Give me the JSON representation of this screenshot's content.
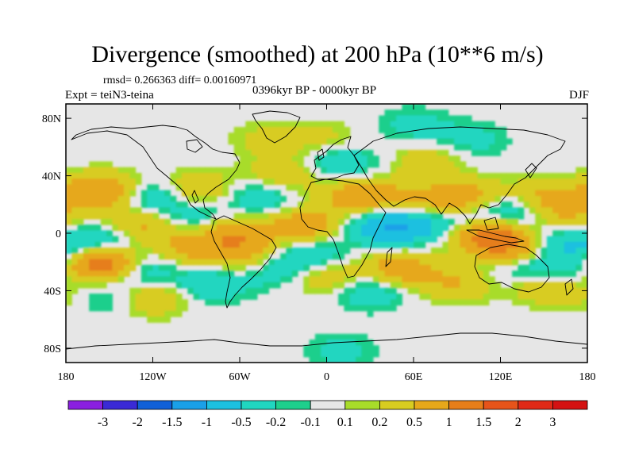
{
  "chart_data": {
    "type": "heatmap",
    "title": "Divergence (smoothed) at 200 hPa (10**6 m/s)",
    "stats_text": "rmsd= 0.266363  diff= 0.00160971",
    "period": "0396kyr BP - 0000kyr BP",
    "experiment": "Expt = teiN3-teina",
    "season": "DJF",
    "xlim": [
      -180,
      180
    ],
    "ylim": [
      -90,
      90
    ],
    "x_ticks": [
      {
        "value": -180,
        "label": "180"
      },
      {
        "value": -120,
        "label": "120W"
      },
      {
        "value": -60,
        "label": "60W"
      },
      {
        "value": 0,
        "label": "0"
      },
      {
        "value": 60,
        "label": "60E"
      },
      {
        "value": 120,
        "label": "120E"
      },
      {
        "value": 180,
        "label": "180"
      }
    ],
    "y_ticks": [
      {
        "value": 80,
        "label": "80N"
      },
      {
        "value": 40,
        "label": "40N"
      },
      {
        "value": 0,
        "label": "0"
      },
      {
        "value": -40,
        "label": "40S"
      },
      {
        "value": -80,
        "label": "80S"
      }
    ],
    "colorbar": {
      "labels": [
        "-3",
        "-2",
        "-1.5",
        "-1",
        "-0.5",
        "-0.2",
        "-0.1",
        "0.1",
        "0.2",
        "0.5",
        "1",
        "1.5",
        "2",
        "3"
      ],
      "colors": [
        "#8a1fe0",
        "#3a2ad6",
        "#1060d8",
        "#1aa0e8",
        "#1cc0e0",
        "#20d6c0",
        "#1ecf8c",
        "#e6e6e6",
        "#a8dc2a",
        "#d8cc20",
        "#e6a81a",
        "#e67e1a",
        "#e6541a",
        "#e02a16",
        "#d41212"
      ]
    },
    "field_anomalies": [
      {
        "lon": -155,
        "lat": -20,
        "value": 1.8
      },
      {
        "lon": -150,
        "lat": 30,
        "value": 0.6
      },
      {
        "lon": -165,
        "lat": 28,
        "value": 0.5
      },
      {
        "lon": -120,
        "lat": 25,
        "value": -0.6
      },
      {
        "lon": -130,
        "lat": 5,
        "value": 0.7
      },
      {
        "lon": -150,
        "lat": -5,
        "value": -0.6
      },
      {
        "lon": -170,
        "lat": -10,
        "value": -0.5
      },
      {
        "lon": -130,
        "lat": -25,
        "value": -0.6
      },
      {
        "lon": -120,
        "lat": -45,
        "value": 0.5
      },
      {
        "lon": -160,
        "lat": -45,
        "value": -0.5
      },
      {
        "lon": -90,
        "lat": 30,
        "value": 0.6
      },
      {
        "lon": -85,
        "lat": 10,
        "value": -0.6
      },
      {
        "lon": -95,
        "lat": -10,
        "value": 0.6
      },
      {
        "lon": -70,
        "lat": 5,
        "value": 0.5
      },
      {
        "lon": -60,
        "lat": -5,
        "value": 0.7
      },
      {
        "lon": -55,
        "lat": -20,
        "value": 0.5
      },
      {
        "lon": -80,
        "lat": -35,
        "value": -0.5
      },
      {
        "lon": -40,
        "lat": -25,
        "value": -0.5
      },
      {
        "lon": -30,
        "lat": 40,
        "value": 0.5
      },
      {
        "lon": -45,
        "lat": 25,
        "value": -0.5
      },
      {
        "lon": -40,
        "lat": 65,
        "value": 0.3
      },
      {
        "lon": -15,
        "lat": 5,
        "value": 0.8
      },
      {
        "lon": -10,
        "lat": -15,
        "value": -0.5
      },
      {
        "lon": 0,
        "lat": -30,
        "value": 0.5
      },
      {
        "lon": 20,
        "lat": 25,
        "value": 0.7
      },
      {
        "lon": 10,
        "lat": 50,
        "value": -0.5
      },
      {
        "lon": 35,
        "lat": 5,
        "value": -0.6
      },
      {
        "lon": 55,
        "lat": 5,
        "value": -0.7
      },
      {
        "lon": 45,
        "lat": 25,
        "value": 0.4
      },
      {
        "lon": 50,
        "lat": -25,
        "value": 0.8
      },
      {
        "lon": 30,
        "lat": -40,
        "value": -0.5
      },
      {
        "lon": 80,
        "lat": 20,
        "value": 0.6
      },
      {
        "lon": 90,
        "lat": 10,
        "value": -0.6
      },
      {
        "lon": 100,
        "lat": 25,
        "value": 0.6
      },
      {
        "lon": 110,
        "lat": 0,
        "value": 1.2
      },
      {
        "lon": 125,
        "lat": 15,
        "value": -0.7
      },
      {
        "lon": 130,
        "lat": -10,
        "value": 1.0
      },
      {
        "lon": 150,
        "lat": 25,
        "value": 0.6
      },
      {
        "lon": 155,
        "lat": -5,
        "value": -0.6
      },
      {
        "lon": 165,
        "lat": 10,
        "value": 0.5
      },
      {
        "lon": 135,
        "lat": -25,
        "value": -0.5
      },
      {
        "lon": 150,
        "lat": -35,
        "value": 0.6
      },
      {
        "lon": 165,
        "lat": -25,
        "value": -0.5
      },
      {
        "lon": 90,
        "lat": -35,
        "value": 0.5
      },
      {
        "lon": 70,
        "lat": 50,
        "value": 0.4
      },
      {
        "lon": 60,
        "lat": 75,
        "value": -0.3
      },
      {
        "lon": 0,
        "lat": 65,
        "value": 0.3
      },
      {
        "lon": 100,
        "lat": 65,
        "value": -0.3
      },
      {
        "lon": 10,
        "lat": -82,
        "value": -0.3
      },
      {
        "lon": -175,
        "lat": -45,
        "value": 0.4
      }
    ]
  }
}
